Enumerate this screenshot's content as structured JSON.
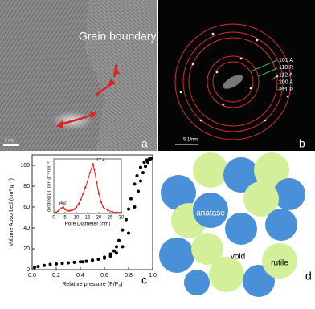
{
  "panels": {
    "a": {
      "label": "a",
      "annotation": "Grain boundary",
      "scale_bar": "5 nm"
    },
    "b": {
      "label": "b",
      "rings": [
        "101 A",
        "110 R",
        "112 A",
        "200 A",
        "211 R"
      ],
      "scale_bar": "5 1/nm"
    },
    "c": {
      "label": "c",
      "chart": {
        "type": "scatter",
        "xlabel": "Relative pressure (P/P₀)",
        "ylabel": "Volume Absorbed (cm³ g⁻¹)",
        "xlim": [
          0,
          1.0
        ],
        "ylim": [
          0,
          110
        ],
        "xticks": [
          {
            "value": 0,
            "label": "0.0"
          },
          {
            "value": 0.2,
            "label": "0.2"
          },
          {
            "value": 0.4,
            "label": "0.4"
          },
          {
            "value": 0.6,
            "label": "0.6"
          },
          {
            "value": 0.8,
            "label": "0.8"
          },
          {
            "value": 1.0,
            "label": "1.0"
          }
        ],
        "yticks": [
          0,
          20,
          40,
          60,
          80,
          100
        ],
        "series": [
          {
            "color": "#000000",
            "x": [
              0.02,
              0.05,
              0.1,
              0.15,
              0.2,
              0.25,
              0.3,
              0.35,
              0.4,
              0.45,
              0.5,
              0.55,
              0.6,
              0.65,
              0.7,
              0.75,
              0.8,
              0.85,
              0.88,
              0.9,
              0.92,
              0.94,
              0.96,
              0.98,
              0.99
            ],
            "y": [
              2,
              3,
              4,
              5,
              5.5,
              6,
              6.5,
              7,
              7.5,
              8,
              9,
              10,
              11,
              13,
              16,
              22,
              35,
              60,
              75,
              85,
              93,
              99,
              103,
              106,
              107
            ]
          },
          {
            "color": "#000000",
            "x": [
              0.99,
              0.97,
              0.95,
              0.93,
              0.9,
              0.87,
              0.85,
              0.82,
              0.8,
              0.78,
              0.75,
              0.72,
              0.7,
              0.68,
              0.65,
              0.6,
              0.55,
              0.5,
              0.45,
              0.42
            ],
            "y": [
              107,
              106,
              105,
              103,
              98,
              90,
              82,
              68,
              58,
              48,
              38,
              28,
              22,
              18,
              15,
              12,
              10,
              9,
              8,
              7.5
            ]
          }
        ],
        "inset": {
          "type": "line",
          "xlabel": "Pore Diameter (nm)",
          "ylabel": "dV/dlog(D) (cm³ g⁻¹ nm⁻¹)",
          "xlim": [
            0,
            30
          ],
          "ylim": [
            0,
            1.05
          ],
          "xticks": [
            0,
            5,
            10,
            15,
            20,
            25,
            30
          ],
          "color": "#e0201b",
          "x": [
            1,
            2,
            3.3,
            4.2,
            5,
            6,
            7,
            8,
            9,
            10,
            11,
            12,
            13,
            14,
            15,
            16,
            17.4,
            18,
            19,
            20,
            21,
            22,
            24,
            26,
            28,
            30
          ],
          "y": [
            0.02,
            0.05,
            0.1,
            0.12,
            0.08,
            0.05,
            0.05,
            0.06,
            0.08,
            0.12,
            0.18,
            0.27,
            0.38,
            0.5,
            0.62,
            0.78,
            0.95,
            0.85,
            0.6,
            0.38,
            0.22,
            0.12,
            0.06,
            0.03,
            0.02,
            0.02
          ],
          "peak_labels": [
            3.3,
            4.2,
            17.4
          ]
        }
      }
    },
    "d": {
      "label": "d",
      "labels": [
        "anatase",
        "void",
        "rutile"
      ]
    }
  }
}
